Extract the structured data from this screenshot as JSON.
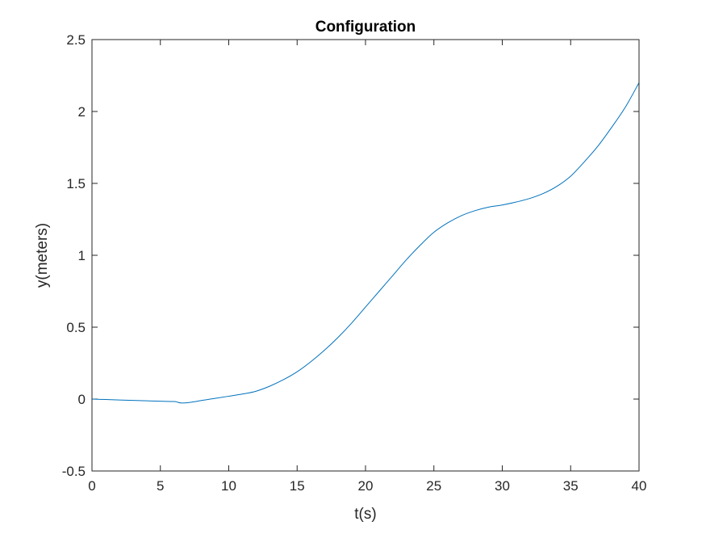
{
  "chart_data": {
    "type": "line",
    "title": "Configuration",
    "xlabel": "t(s)",
    "ylabel": "y(meters)",
    "xlim": [
      0,
      40
    ],
    "ylim": [
      -0.5,
      2.5
    ],
    "xticks": [
      0,
      5,
      10,
      15,
      20,
      25,
      30,
      35,
      40
    ],
    "yticks": [
      -0.5,
      0,
      0.5,
      1,
      1.5,
      2,
      2.5
    ],
    "xtick_labels": [
      "0",
      "5",
      "10",
      "15",
      "20",
      "25",
      "30",
      "35",
      "40"
    ],
    "ytick_labels": [
      "-0.5",
      "0",
      "0.5",
      "1",
      "1.5",
      "2",
      "2.5"
    ],
    "grid": false,
    "legend": false,
    "series": [
      {
        "color": "#0072BD",
        "x": [
          0,
          1,
          2,
          3,
          4,
          5,
          6,
          6.2,
          6.5,
          7,
          7.5,
          8,
          9,
          10,
          11,
          12,
          13,
          14,
          15,
          16,
          17,
          18,
          19,
          20,
          21,
          22,
          23,
          24,
          25,
          26,
          27,
          28,
          29,
          30,
          31,
          32,
          33,
          34,
          35,
          36,
          37,
          38,
          39,
          40
        ],
        "y": [
          0.0,
          -0.003,
          -0.006,
          -0.009,
          -0.012,
          -0.015,
          -0.017,
          -0.02,
          -0.027,
          -0.025,
          -0.018,
          -0.01,
          0.005,
          0.02,
          0.035,
          0.055,
          0.09,
          0.135,
          0.19,
          0.26,
          0.34,
          0.43,
          0.53,
          0.64,
          0.75,
          0.86,
          0.97,
          1.07,
          1.16,
          1.225,
          1.275,
          1.31,
          1.335,
          1.35,
          1.37,
          1.395,
          1.43,
          1.48,
          1.55,
          1.65,
          1.76,
          1.89,
          2.03,
          2.2
        ]
      }
    ]
  }
}
